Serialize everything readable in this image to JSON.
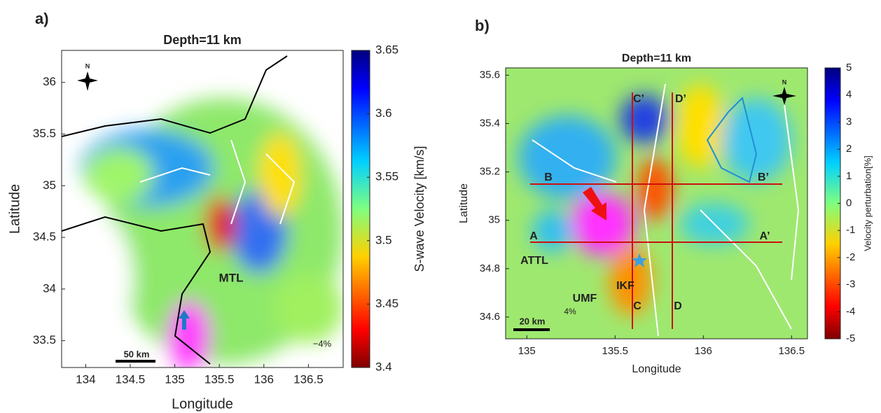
{
  "chart_data": [
    {
      "type": "map",
      "panel_label": "a)",
      "title": "Depth=11 km",
      "x_label": "Longitude",
      "y_label": "Latitude",
      "xlim": [
        133.73,
        136.89
      ],
      "ylim": [
        33.24,
        36.31
      ],
      "xticks": [
        134,
        134.5,
        135,
        135.5,
        136,
        136.5
      ],
      "yticks": [
        33.5,
        34,
        34.5,
        35,
        35.5,
        36
      ],
      "colorbar": {
        "label": "S-wave Velocity [km/s]",
        "lim": [
          3.4,
          3.65
        ],
        "ticks": [
          3.4,
          3.45,
          3.5,
          3.55,
          3.6,
          3.65
        ]
      },
      "annotations": [
        "N",
        "MTL",
        "50 km",
        "−4%"
      ]
    },
    {
      "type": "map",
      "panel_label": "b)",
      "title": "Depth=11 km",
      "x_label": "Longitude",
      "y_label": "Latitude",
      "xlim": [
        134.88,
        136.59
      ],
      "ylim": [
        34.51,
        35.63
      ],
      "xticks": [
        135,
        135.5,
        136,
        136.5
      ],
      "yticks": [
        34.6,
        34.8,
        35,
        35.2,
        35.4,
        35.6
      ],
      "colorbar": {
        "label": "Velocity perturbation[%]",
        "lim": [
          -5,
          5
        ],
        "ticks": [
          -5,
          -4,
          -3,
          -2,
          -1,
          0,
          1,
          2,
          3,
          4,
          5
        ]
      },
      "annotations": [
        "N",
        "B",
        "B’",
        "A",
        "A’",
        "C’",
        "D’",
        "C",
        "D",
        "ATTL",
        "IKF",
        "UMF",
        "20 km",
        "4%"
      ]
    }
  ]
}
